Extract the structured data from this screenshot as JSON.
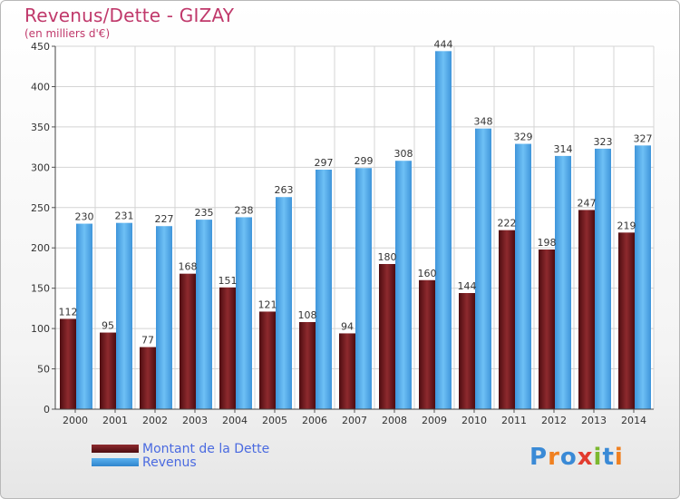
{
  "header": {
    "title": "Revenus/Dette - GIZAY",
    "subtitle": "(en milliers d'€)"
  },
  "legend": {
    "debt_label": "Montant de la Dette",
    "revenue_label": "Revenus"
  },
  "logo": {
    "text": "Proxiti",
    "letters": [
      "P",
      "r",
      "o",
      "x",
      "i",
      "t",
      "i"
    ],
    "colors": [
      "#3a8ad6",
      "#f08020",
      "#3a8ad6",
      "#e23b2e",
      "#7cb82f",
      "#3a8ad6",
      "#f08020"
    ]
  },
  "colors": {
    "debt": "#7a1f24",
    "revenue": "#4fa3e2",
    "title": "#c0396b"
  },
  "chart_data": {
    "type": "bar",
    "title": "Revenus/Dette - GIZAY",
    "subtitle": "(en milliers d'€)",
    "categories": [
      "2000",
      "2001",
      "2002",
      "2003",
      "2004",
      "2005",
      "2006",
      "2007",
      "2008",
      "2009",
      "2010",
      "2011",
      "2012",
      "2013",
      "2014"
    ],
    "series": [
      {
        "name": "Montant de la Dette",
        "values": [
          112,
          95,
          77,
          168,
          151,
          121,
          108,
          94,
          180,
          160,
          144,
          222,
          198,
          247,
          219
        ]
      },
      {
        "name": "Revenus",
        "values": [
          230,
          231,
          227,
          235,
          238,
          263,
          297,
          299,
          308,
          444,
          348,
          329,
          314,
          323,
          327
        ]
      }
    ],
    "ylim": [
      0,
      450
    ],
    "yticks": [
      0,
      50,
      100,
      150,
      200,
      250,
      300,
      350,
      400,
      450
    ],
    "grid": true,
    "legend": "bottom-left"
  }
}
